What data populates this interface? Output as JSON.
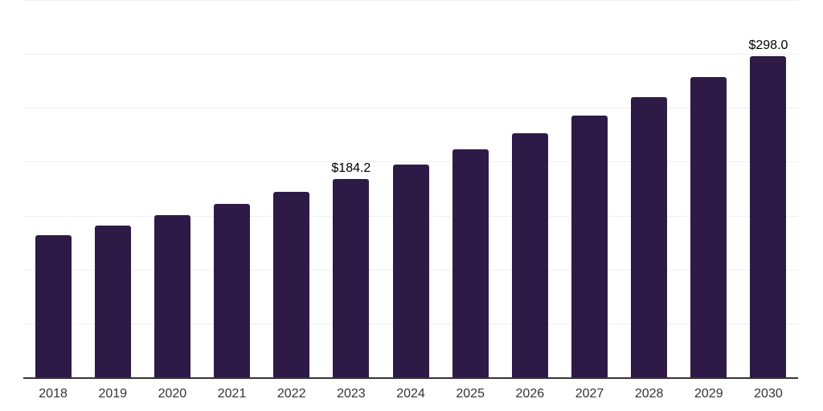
{
  "chart_data": {
    "type": "bar",
    "title": "",
    "xlabel": "",
    "ylabel": "",
    "categories": [
      "2018",
      "2019",
      "2020",
      "2021",
      "2022",
      "2023",
      "2024",
      "2025",
      "2026",
      "2027",
      "2028",
      "2029",
      "2030"
    ],
    "values": [
      131.9,
      140.8,
      150.7,
      160.7,
      172.4,
      184.2,
      197.3,
      211.4,
      226.4,
      242.5,
      259.8,
      278.2,
      298.0
    ],
    "data_labels": {
      "2023": "$184.2",
      "2030": "$298.0"
    },
    "ylim": [
      0,
      350
    ],
    "grid": true,
    "gridline_interval": 50,
    "y_tick_labels_visible": false,
    "legend": null,
    "colors": {
      "bar": "#2e1a47",
      "gridline": "#efefef",
      "axis": "#333333",
      "tick_label": "#333333",
      "data_label": "#000000",
      "background": "#ffffff"
    }
  }
}
